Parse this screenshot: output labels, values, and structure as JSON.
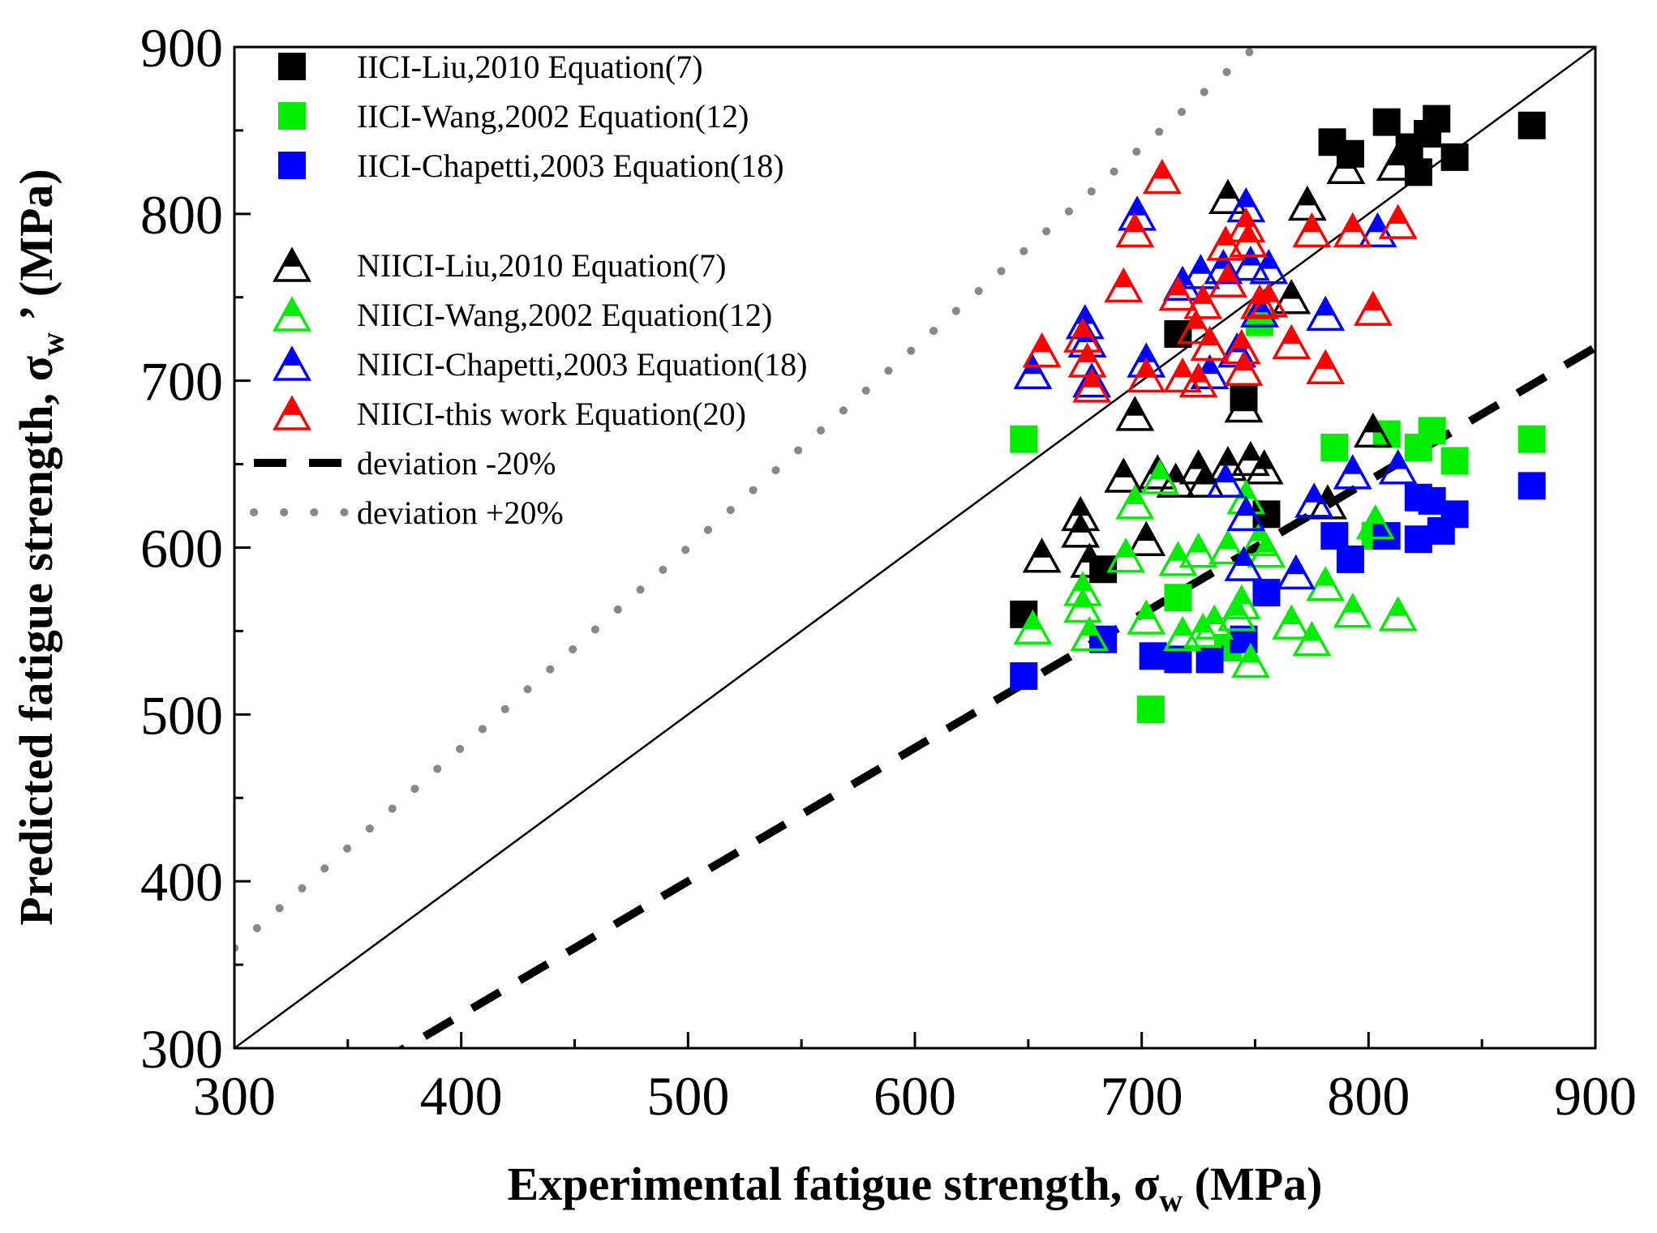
{
  "chart_data": {
    "type": "scatter",
    "xlabel": {
      "main": "Experimental fatigue strength, σ",
      "sub": "w",
      "unit": " (MPa)"
    },
    "ylabel": {
      "main": "Predicted fatigue strength, σ",
      "sub": "w",
      "suffix": " ’ (MPa)"
    },
    "xlim": [
      300,
      900
    ],
    "ylim": [
      300,
      900
    ],
    "x_ticks": [
      300,
      400,
      500,
      600,
      700,
      800,
      900
    ],
    "y_ticks": [
      300,
      400,
      500,
      600,
      700,
      800,
      900
    ],
    "minor_tick_step": 50,
    "grid": false,
    "legend_position": "top-left",
    "reference_lines": [
      {
        "name": "",
        "style": "solid",
        "slope": 1.0,
        "color": "#000000"
      },
      {
        "name": "deviation -20%",
        "style": "dash",
        "slope": 0.8,
        "color": "#000000"
      },
      {
        "name": "deviation +20%",
        "style": "dot",
        "slope": 1.2,
        "color": "#888888"
      }
    ],
    "series": [
      {
        "name": "IICI-Liu,2010 Equation(7)",
        "marker": "square",
        "color": "#000000",
        "points": [
          [
            648,
            560
          ],
          [
            683,
            587
          ],
          [
            716,
            728
          ],
          [
            745,
            690
          ],
          [
            755,
            620
          ],
          [
            784,
            843
          ],
          [
            792,
            836
          ],
          [
            808,
            855
          ],
          [
            818,
            840
          ],
          [
            822,
            825
          ],
          [
            826,
            848
          ],
          [
            830,
            857
          ],
          [
            838,
            834
          ],
          [
            872,
            853
          ]
        ]
      },
      {
        "name": "IICI-Wang,2002 Equation(12)",
        "marker": "square",
        "color": "#00ee00",
        "points": [
          [
            648,
            665
          ],
          [
            704,
            503
          ],
          [
            716,
            570
          ],
          [
            738,
            540
          ],
          [
            752,
            735
          ],
          [
            785,
            660
          ],
          [
            803,
            607
          ],
          [
            808,
            668
          ],
          [
            822,
            660
          ],
          [
            828,
            670
          ],
          [
            838,
            652
          ],
          [
            872,
            665
          ]
        ]
      },
      {
        "name": "IICI-Chapetti,2003 Equation(18)",
        "marker": "square",
        "color": "#0000ff",
        "points": [
          [
            648,
            523
          ],
          [
            683,
            545
          ],
          [
            705,
            535
          ],
          [
            716,
            533
          ],
          [
            730,
            533
          ],
          [
            745,
            545
          ],
          [
            755,
            573
          ],
          [
            785,
            607
          ],
          [
            792,
            593
          ],
          [
            808,
            607
          ],
          [
            822,
            630
          ],
          [
            822,
            605
          ],
          [
            828,
            628
          ],
          [
            832,
            610
          ],
          [
            838,
            620
          ],
          [
            872,
            637
          ]
        ]
      },
      {
        "name": "NIICI-Liu,2010 Equation(7)",
        "marker": "triangle",
        "color": "#000000",
        "points": [
          [
            656,
            595
          ],
          [
            673,
            620
          ],
          [
            673,
            610
          ],
          [
            677,
            592
          ],
          [
            692,
            643
          ],
          [
            697,
            680
          ],
          [
            702,
            605
          ],
          [
            707,
            645
          ],
          [
            715,
            640
          ],
          [
            725,
            648
          ],
          [
            728,
            640
          ],
          [
            738,
            650
          ],
          [
            745,
            685
          ],
          [
            748,
            653
          ],
          [
            754,
            648
          ],
          [
            766,
            750
          ],
          [
            773,
            806
          ],
          [
            782,
            627
          ],
          [
            790,
            828
          ],
          [
            802,
            670
          ],
          [
            812,
            830
          ],
          [
            738,
            810
          ]
        ]
      },
      {
        "name": "NIICI-Wang,2002 Equation(12)",
        "marker": "triangle",
        "color": "#00ee00",
        "points": [
          [
            652,
            552
          ],
          [
            674,
            575
          ],
          [
            674,
            565
          ],
          [
            677,
            548
          ],
          [
            693,
            595
          ],
          [
            697,
            627
          ],
          [
            702,
            558
          ],
          [
            708,
            642
          ],
          [
            716,
            593
          ],
          [
            718,
            548
          ],
          [
            725,
            598
          ],
          [
            727,
            550
          ],
          [
            732,
            555
          ],
          [
            738,
            600
          ],
          [
            742,
            560
          ],
          [
            744,
            567
          ],
          [
            746,
            630
          ],
          [
            748,
            532
          ],
          [
            752,
            605
          ],
          [
            755,
            598
          ],
          [
            766,
            555
          ],
          [
            775,
            545
          ],
          [
            781,
            578
          ],
          [
            793,
            562
          ],
          [
            803,
            615
          ],
          [
            813,
            560
          ]
        ]
      },
      {
        "name": "NIICI-Chapetti,2003 Equation(18)",
        "marker": "triangle",
        "color": "#0000ff",
        "points": [
          [
            652,
            705
          ],
          [
            675,
            735
          ],
          [
            676,
            724
          ],
          [
            678,
            700
          ],
          [
            698,
            800
          ],
          [
            702,
            712
          ],
          [
            718,
            758
          ],
          [
            726,
            765
          ],
          [
            730,
            705
          ],
          [
            736,
            768
          ],
          [
            737,
            640
          ],
          [
            742,
            718
          ],
          [
            745,
            590
          ],
          [
            746,
            620
          ],
          [
            746,
            805
          ],
          [
            748,
            770
          ],
          [
            752,
            742
          ],
          [
            756,
            768
          ],
          [
            768,
            585
          ],
          [
            776,
            628
          ],
          [
            781,
            740
          ],
          [
            793,
            645
          ],
          [
            804,
            790
          ],
          [
            813,
            648
          ]
        ]
      },
      {
        "name": "NIICI-this work Equation(20)",
        "marker": "triangle",
        "color": "#ff0000",
        "points": [
          [
            656,
            718
          ],
          [
            674,
            727
          ],
          [
            676,
            712
          ],
          [
            678,
            697
          ],
          [
            692,
            757
          ],
          [
            697,
            790
          ],
          [
            702,
            703
          ],
          [
            709,
            822
          ],
          [
            716,
            752
          ],
          [
            718,
            703
          ],
          [
            724,
            732
          ],
          [
            725,
            700
          ],
          [
            727,
            747
          ],
          [
            730,
            722
          ],
          [
            737,
            782
          ],
          [
            738,
            760
          ],
          [
            744,
            720
          ],
          [
            745,
            707
          ],
          [
            746,
            793
          ],
          [
            747,
            784
          ],
          [
            752,
            747
          ],
          [
            756,
            748
          ],
          [
            766,
            723
          ],
          [
            775,
            790
          ],
          [
            781,
            708
          ],
          [
            793,
            790
          ],
          [
            802,
            743
          ],
          [
            813,
            795
          ]
        ]
      }
    ]
  }
}
